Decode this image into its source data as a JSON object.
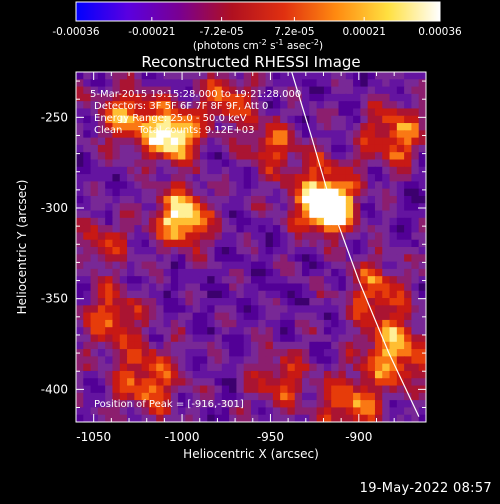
{
  "colorbar": {
    "ticks": [
      "-0.00036",
      "-0.00021",
      "-7.2e-05",
      "7.2e-05",
      "0.00021",
      "0.00036"
    ],
    "tick_values": [
      -0.00036,
      -0.00021,
      -7.2e-05,
      7.2e-05,
      0.00021,
      0.00036
    ],
    "range": [
      -0.00036,
      0.00036
    ],
    "unit_main": "(photons cm",
    "unit_sup1": "-2",
    "unit_mid": " s",
    "unit_sup2": "-1",
    "unit_end": " asec",
    "unit_sup3": "-2",
    "unit_close": ")",
    "colors": [
      "#0000ff",
      "#5a00e0",
      "#7a0090",
      "#b01020",
      "#e03010",
      "#ff8a10",
      "#ffe040",
      "#ffffff"
    ]
  },
  "chart_data": {
    "type": "heatmap",
    "title": "Reconstructed RHESSI Image",
    "xlabel": "Heliocentric X (arcsec)",
    "ylabel": "Heliocentric Y (arcsec)",
    "xlim": [
      -1060,
      -862
    ],
    "ylim": [
      -418,
      -225
    ],
    "x_ticks": [
      "-1050",
      "-1000",
      "-950",
      "-900"
    ],
    "x_tick_values": [
      -1050,
      -1000,
      -950,
      -900
    ],
    "y_ticks": [
      "-250",
      "-300",
      "-350",
      "-400"
    ],
    "y_tick_values": [
      -250,
      -300,
      -350,
      -400
    ],
    "peak": [
      -916,
      -301
    ],
    "limb_curve": [
      [
        -938,
        -225
      ],
      [
        -927,
        -260
      ],
      [
        -915,
        -300
      ],
      [
        -900,
        -340
      ],
      [
        -883,
        -380
      ],
      [
        -866,
        -415
      ]
    ],
    "annotations": {
      "time": "5-Mar-2015 19:15:28.000 to 19:21:28.000",
      "detectors": "Detectors: 3F 5F 6F 7F 8F 9F, Att 0",
      "energy": "Energy Range: 25.0 - 50.0 keV",
      "clean": "Clean     Total counts: 9.12E+03",
      "peak_label": "Position of Peak = [-916,-301]"
    }
  },
  "footer": {
    "date": "19-May-2022 08:57"
  }
}
